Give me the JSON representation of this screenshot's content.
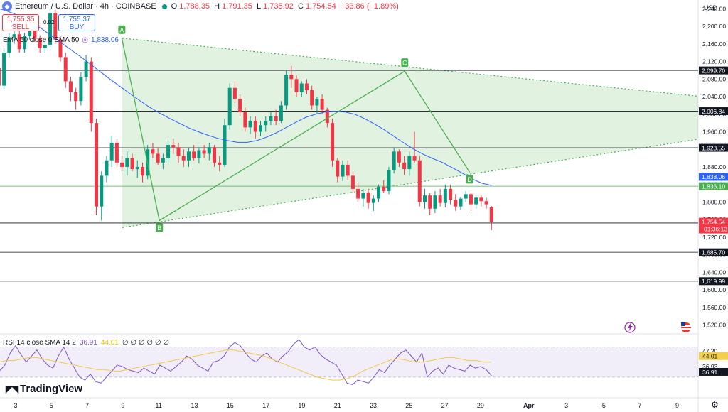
{
  "header": {
    "symbol": "Ethereum / U.S. Dollar · 4h · COINBASE",
    "open_label": "O",
    "open": "1,788.35",
    "high_label": "H",
    "high": "1,791.35",
    "low_label": "L",
    "low": "1,735.92",
    "close_label": "C",
    "close": "1,754.54",
    "change": "−33.86 (−1.89%)"
  },
  "trade": {
    "sell_price": "1,755.35",
    "sell_label": "SELL",
    "buy_price": "1,755.37",
    "buy_label": "BUY",
    "spread": "0.02"
  },
  "ema_legend": {
    "text": "EMA 50 close 0 EMA 50",
    "value": "1,838.06"
  },
  "rsi_legend": {
    "text": "RSI 14 close SMA 14 2",
    "rsi": "36.91",
    "sma": "44.01",
    "extra": "∅ ∅ ∅ ∅ ∅ ∅"
  },
  "currency": "USD",
  "brand": "TradingView",
  "colors": {
    "up": "#089981",
    "down": "#f23645",
    "ema": "#2962ff",
    "triangle": "#4caf50",
    "rsi": "#7e57c2",
    "rsi_sma": "#f2c94c"
  },
  "chart_data": {
    "type": "candlestick",
    "price_axis": {
      "min": 1500,
      "max": 2260,
      "ticks": [
        "2,240.00",
        "2,200.00",
        "2,160.00",
        "2,120.00",
        "2,080.00",
        "2,040.00",
        "2,000.00",
        "1,960.00",
        "1,920.00",
        "1,880.00",
        "1,840.00",
        "1,800.00",
        "1,760.00",
        "1,720.00",
        "1,680.00",
        "1,640.00",
        "1,600.00",
        "1,560.00",
        "1,520.00"
      ]
    },
    "x_ticks": [
      "3",
      "5",
      "7",
      "9",
      "11",
      "13",
      "15",
      "17",
      "19",
      "21",
      "23",
      "25",
      "27",
      "29",
      "Apr",
      "3",
      "5",
      "7",
      "9"
    ],
    "levels": [
      {
        "value": 2099.7,
        "label": "2,099.70",
        "color": "#131722"
      },
      {
        "value": 2006.84,
        "label": "2,006.84",
        "color": "#131722"
      },
      {
        "value": 1923.55,
        "label": "1,923.55",
        "color": "#131722"
      },
      {
        "value": 1836.1,
        "label": "1,836.10",
        "color": "#4caf50"
      },
      {
        "value": 1752.33,
        "label": "1,752.33",
        "color": "#131722"
      },
      {
        "value": 1685.7,
        "label": "1,685.70",
        "color": "#131722"
      },
      {
        "value": 1619.99,
        "label": "1,619.99",
        "color": "#131722"
      }
    ],
    "ema_label": "1,838.06",
    "last_price": {
      "value": 1754.54,
      "label": "1,754.54",
      "countdown": "01:36:13"
    },
    "triangle": {
      "upper": [
        [
          172,
          2173
        ],
        [
          982,
          2041
        ]
      ],
      "lower": [
        [
          172,
          1742
        ],
        [
          982,
          1943
        ]
      ]
    },
    "pattern_points": [
      {
        "name": "A",
        "day": 8.94,
        "price": 2173
      },
      {
        "name": "B",
        "day": 11.04,
        "price": 1758
      },
      {
        "name": "C",
        "day": 24.76,
        "price": 2098
      },
      {
        "name": "D",
        "day": 28.39,
        "price": 1868
      }
    ],
    "rsi_axis": {
      "min": 20,
      "max": 55,
      "ticks": [
        "47.20",
        "36.93"
      ],
      "sma_label": "44.01",
      "rsi_label": "36.91",
      "bands": [
        50,
        30
      ]
    },
    "ema_series": [
      2245,
      2243,
      2238,
      2230,
      2220,
      2208,
      2194,
      2178,
      2162,
      2146,
      2130,
      2113,
      2096,
      2079,
      2063,
      2047,
      2031,
      2016,
      2003,
      1991,
      1980,
      1969,
      1960,
      1952,
      1945,
      1940,
      1936,
      1936,
      1940,
      1948,
      1958,
      1970,
      1982,
      1993,
      2000,
      2005,
      2007,
      2005,
      2000,
      1990,
      1978,
      1965,
      1950,
      1935,
      1921,
      1909,
      1899,
      1890,
      1878,
      1866,
      1853,
      1843,
      1838
    ],
    "candles": [
      [
        2185,
        2230,
        2170,
        2215
      ],
      [
        2215,
        2222,
        2155,
        2160
      ],
      [
        2160,
        2168,
        2095,
        2105
      ],
      [
        2105,
        2112,
        2055,
        2065
      ],
      [
        2065,
        2150,
        2058,
        2140
      ],
      [
        2140,
        2185,
        2130,
        2175
      ],
      [
        2175,
        2195,
        2160,
        2182
      ],
      [
        2182,
        2190,
        2140,
        2148
      ],
      [
        2148,
        2185,
        2140,
        2178
      ],
      [
        2178,
        2205,
        2170,
        2195
      ],
      [
        2195,
        2205,
        2165,
        2172
      ],
      [
        2172,
        2180,
        2140,
        2150
      ],
      [
        2150,
        2165,
        2140,
        2158
      ],
      [
        2158,
        2240,
        2150,
        2230
      ],
      [
        2230,
        2238,
        2160,
        2170
      ],
      [
        2170,
        2178,
        2120,
        2130
      ],
      [
        2130,
        2140,
        2060,
        2075
      ],
      [
        2075,
        2085,
        2030,
        2050
      ],
      [
        2050,
        2060,
        2010,
        2030
      ],
      [
        2030,
        2095,
        2020,
        2085
      ],
      [
        2085,
        2135,
        2075,
        2120
      ],
      [
        2120,
        2130,
        1960,
        1980
      ],
      [
        1980,
        1990,
        1770,
        1790
      ],
      [
        1790,
        1870,
        1758,
        1860
      ],
      [
        1860,
        1905,
        1845,
        1895
      ],
      [
        1895,
        1950,
        1880,
        1935
      ],
      [
        1935,
        1945,
        1880,
        1890
      ],
      [
        1890,
        1905,
        1870,
        1880
      ],
      [
        1880,
        1915,
        1860,
        1900
      ],
      [
        1900,
        1910,
        1870,
        1875
      ],
      [
        1875,
        1895,
        1855,
        1880
      ],
      [
        1880,
        1890,
        1845,
        1860
      ],
      [
        1860,
        1930,
        1852,
        1920
      ],
      [
        1920,
        1935,
        1900,
        1910
      ],
      [
        1910,
        1925,
        1885,
        1890
      ],
      [
        1890,
        1910,
        1875,
        1900
      ],
      [
        1900,
        1940,
        1890,
        1930
      ],
      [
        1930,
        1945,
        1910,
        1925
      ],
      [
        1925,
        1935,
        1890,
        1905
      ],
      [
        1905,
        1920,
        1880,
        1895
      ],
      [
        1895,
        1925,
        1880,
        1915
      ],
      [
        1915,
        1930,
        1895,
        1900
      ],
      [
        1900,
        1925,
        1888,
        1918
      ],
      [
        1918,
        1930,
        1900,
        1910
      ],
      [
        1910,
        1935,
        1895,
        1925
      ],
      [
        1925,
        1930,
        1880,
        1890
      ],
      [
        1890,
        1905,
        1870,
        1885
      ],
      [
        1885,
        1990,
        1880,
        1975
      ],
      [
        1975,
        2070,
        1965,
        2060
      ],
      [
        2060,
        2075,
        2025,
        2035
      ],
      [
        2035,
        2045,
        1995,
        2005
      ],
      [
        2005,
        2015,
        1960,
        1970
      ],
      [
        1970,
        1995,
        1955,
        1985
      ],
      [
        1985,
        1995,
        1945,
        1960
      ],
      [
        1960,
        1985,
        1950,
        1975
      ],
      [
        1975,
        1995,
        1960,
        1985
      ],
      [
        1985,
        2005,
        1975,
        1995
      ],
      [
        1995,
        2010,
        1975,
        1985
      ],
      [
        1985,
        2030,
        1980,
        2020
      ],
      [
        2020,
        2100,
        2010,
        2090
      ],
      [
        2090,
        2110,
        2060,
        2080
      ],
      [
        2080,
        2088,
        2040,
        2050
      ],
      [
        2050,
        2075,
        2040,
        2070
      ],
      [
        2070,
        2080,
        2045,
        2055
      ],
      [
        2055,
        2065,
        2010,
        2020
      ],
      [
        2020,
        2040,
        2000,
        2035
      ],
      [
        2035,
        2045,
        2000,
        2010
      ],
      [
        2010,
        2015,
        1970,
        1980
      ],
      [
        1980,
        1990,
        1880,
        1895
      ],
      [
        1895,
        1900,
        1845,
        1858
      ],
      [
        1858,
        1895,
        1848,
        1885
      ],
      [
        1885,
        1895,
        1850,
        1860
      ],
      [
        1860,
        1870,
        1820,
        1830
      ],
      [
        1830,
        1845,
        1800,
        1808
      ],
      [
        1808,
        1830,
        1790,
        1822
      ],
      [
        1822,
        1830,
        1785,
        1798
      ],
      [
        1798,
        1815,
        1780,
        1808
      ],
      [
        1808,
        1840,
        1800,
        1835
      ],
      [
        1835,
        1850,
        1820,
        1825
      ],
      [
        1825,
        1880,
        1818,
        1872
      ],
      [
        1872,
        1925,
        1865,
        1915
      ],
      [
        1915,
        1920,
        1880,
        1890
      ],
      [
        1890,
        1905,
        1862,
        1875
      ],
      [
        1875,
        1915,
        1860,
        1905
      ],
      [
        1905,
        1960,
        1890,
        1895
      ],
      [
        1895,
        1905,
        1790,
        1800
      ],
      [
        1800,
        1830,
        1785,
        1815
      ],
      [
        1815,
        1820,
        1770,
        1785
      ],
      [
        1785,
        1825,
        1775,
        1815
      ],
      [
        1815,
        1830,
        1790,
        1798
      ],
      [
        1798,
        1840,
        1788,
        1830
      ],
      [
        1830,
        1840,
        1795,
        1805
      ],
      [
        1805,
        1818,
        1780,
        1790
      ],
      [
        1790,
        1812,
        1782,
        1808
      ],
      [
        1808,
        1825,
        1800,
        1818
      ],
      [
        1818,
        1822,
        1780,
        1795
      ],
      [
        1795,
        1815,
        1785,
        1810
      ],
      [
        1810,
        1815,
        1790,
        1802
      ],
      [
        1802,
        1810,
        1785,
        1795
      ],
      [
        1788,
        1791,
        1736,
        1755
      ]
    ],
    "rsi_series": [
      40,
      47,
      36,
      34,
      38,
      46,
      51,
      45,
      40,
      44,
      48,
      42,
      38,
      36,
      44,
      50,
      42,
      36,
      30,
      28,
      32,
      27,
      26,
      30,
      34,
      38,
      37,
      35,
      34,
      33,
      36,
      34,
      32,
      38,
      36,
      34,
      37,
      40,
      44,
      42,
      38,
      36,
      34,
      40,
      41,
      44,
      50,
      53,
      51,
      46,
      42,
      40,
      44,
      46,
      42,
      40,
      44,
      47,
      52,
      55,
      50,
      48,
      50,
      45,
      42,
      40,
      38,
      32,
      26,
      25,
      28,
      27,
      26,
      30,
      35,
      33,
      38,
      42,
      46,
      48,
      44,
      40,
      46,
      30,
      34,
      36,
      32,
      38,
      36,
      35,
      34,
      38,
      36,
      37,
      35,
      31
    ],
    "rsi_sma_series": [
      38,
      39,
      40,
      41,
      41,
      42,
      43,
      43,
      42,
      41,
      40,
      39,
      38,
      37,
      36,
      35,
      35,
      34,
      34,
      35,
      36,
      37,
      38,
      39,
      40,
      41,
      42,
      43,
      44,
      45,
      46,
      47,
      48,
      48,
      47,
      46,
      45,
      44,
      42,
      40,
      38,
      36,
      34,
      32,
      30,
      29,
      28,
      28,
      29,
      31,
      34,
      36,
      38,
      40,
      42,
      42,
      41,
      40,
      40,
      41,
      42,
      43,
      43,
      42,
      41,
      41,
      40,
      40
    ]
  }
}
